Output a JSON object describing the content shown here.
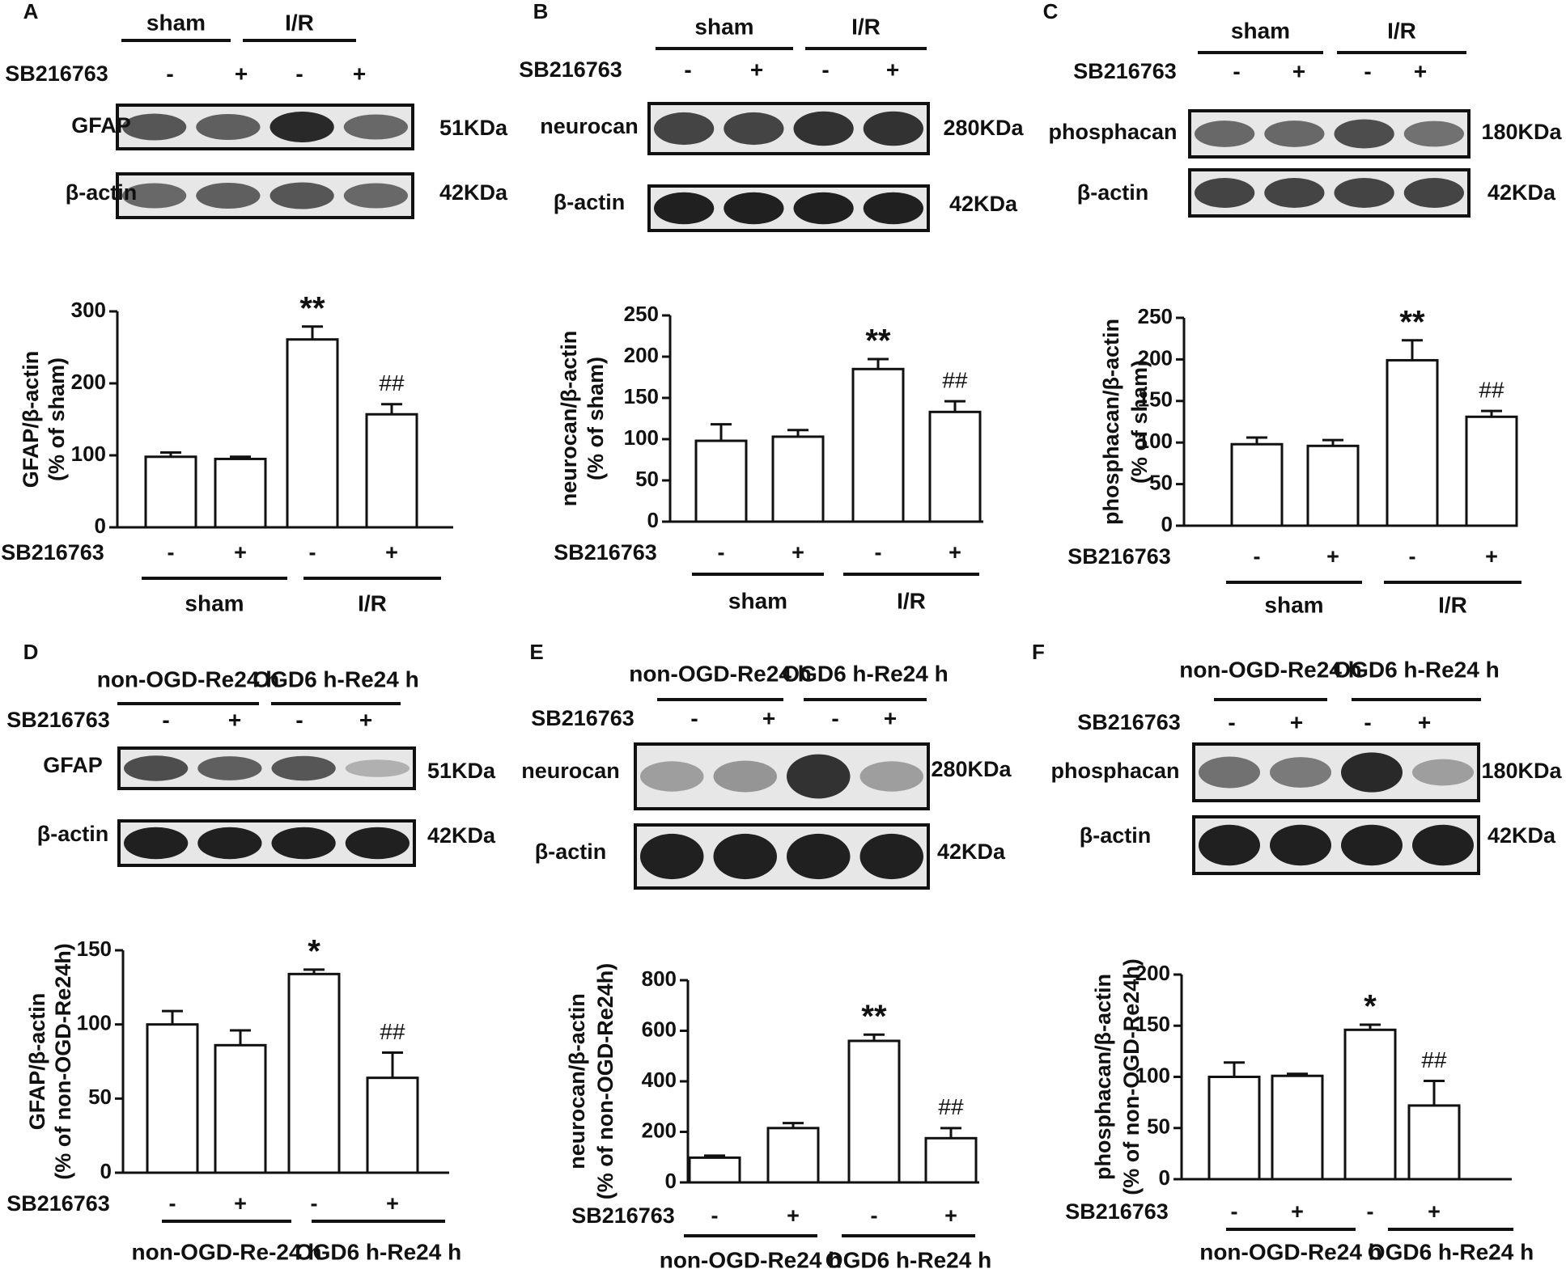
{
  "panels": [
    {
      "letter": "A",
      "blot": {
        "groups": [
          "sham",
          "I/R"
        ],
        "treatment_label": "SB216763",
        "signs": [
          "-",
          "+",
          "-",
          "+"
        ],
        "rows": [
          {
            "label": "GFAP",
            "size": "51KDa",
            "intensity": [
              0.7,
              0.65,
              0.95,
              0.6
            ]
          },
          {
            "label": "β-actin",
            "size": "42KDa",
            "intensity": [
              0.6,
              0.65,
              0.7,
              0.6
            ]
          }
        ]
      },
      "chart_data": {
        "type": "bar",
        "ylabel": "GFAP/β-actin",
        "ylabel2": "(% of sham)",
        "ylim": [
          0,
          300
        ],
        "yticks": [
          0,
          100,
          200,
          300
        ],
        "treatment_label": "SB216763",
        "categories": [
          "-",
          "+",
          "-",
          "+"
        ],
        "values": [
          98,
          95,
          261,
          157
        ],
        "errors": [
          6,
          3,
          18,
          14
        ],
        "annotations": [
          "",
          "",
          "**",
          "##"
        ],
        "groups": [
          "sham",
          "I/R"
        ]
      }
    },
    {
      "letter": "B",
      "blot": {
        "groups": [
          "sham",
          "I/R"
        ],
        "treatment_label": "SB216763",
        "signs": [
          "-",
          "+",
          "-",
          "+"
        ],
        "rows": [
          {
            "label": "neurocan",
            "size": "280KDa",
            "intensity": [
              0.8,
              0.8,
              0.9,
              0.9
            ]
          },
          {
            "label": "β-actin",
            "size": "42KDa",
            "intensity": [
              1,
              1,
              1,
              1
            ]
          }
        ]
      },
      "chart_data": {
        "type": "bar",
        "ylabel": "neurocan/β-actin",
        "ylabel2": "(% of sham)",
        "ylim": [
          0,
          250
        ],
        "yticks": [
          0,
          50,
          100,
          150,
          200,
          250
        ],
        "treatment_label": "SB216763",
        "categories": [
          "-",
          "+",
          "-",
          "+"
        ],
        "values": [
          98,
          103,
          185,
          133
        ],
        "errors": [
          20,
          8,
          12,
          13
        ],
        "annotations": [
          "",
          "",
          "**",
          "##"
        ],
        "groups": [
          "sham",
          "I/R"
        ]
      }
    },
    {
      "letter": "C",
      "blot": {
        "groups": [
          "sham",
          "I/R"
        ],
        "treatment_label": "SB216763",
        "signs": [
          "-",
          "+",
          "-",
          "+"
        ],
        "rows": [
          {
            "label": "phosphacan",
            "size": "180KDa",
            "intensity": [
              0.6,
              0.6,
              0.75,
              0.55
            ]
          },
          {
            "label": "β-actin",
            "size": "42KDa",
            "intensity": [
              0.8,
              0.8,
              0.8,
              0.8
            ]
          }
        ]
      },
      "chart_data": {
        "type": "bar",
        "ylabel": "phosphacan/β-actin",
        "ylabel2": "(% of sham)",
        "ylim": [
          0,
          250
        ],
        "yticks": [
          0,
          50,
          100,
          150,
          200,
          250
        ],
        "treatment_label": "SB216763",
        "categories": [
          "-",
          "+",
          "-",
          "+"
        ],
        "values": [
          98,
          96,
          199,
          131
        ],
        "errors": [
          8,
          7,
          24,
          7
        ],
        "annotations": [
          "",
          "",
          "**",
          "##"
        ],
        "groups": [
          "sham",
          "I/R"
        ]
      }
    },
    {
      "letter": "D",
      "blot": {
        "groups": [
          "non-OGD-Re24 h",
          "OGD6 h-Re24 h"
        ],
        "treatment_label": "SB216763",
        "signs": [
          "-",
          "+",
          "-",
          "+"
        ],
        "rows": [
          {
            "label": "GFAP",
            "size": "51KDa",
            "intensity": [
              0.75,
              0.65,
              0.7,
              0.2
            ]
          },
          {
            "label": "β-actin",
            "size": "42KDa",
            "intensity": [
              1,
              1,
              1,
              1
            ]
          }
        ]
      },
      "chart_data": {
        "type": "bar",
        "ylabel": "GFAP/β-actin",
        "ylabel2": "(% of non-OGD-Re24h)",
        "ylim": [
          0,
          150
        ],
        "yticks": [
          0,
          50,
          100,
          150
        ],
        "treatment_label": "SB216763",
        "categories": [
          "-",
          "+",
          "-",
          "+"
        ],
        "values": [
          100,
          86,
          134,
          64
        ],
        "errors": [
          9,
          10,
          3,
          17
        ],
        "annotations": [
          "",
          "",
          "*",
          "##"
        ],
        "groups": [
          "non-OGD-Re-24 h",
          "OGD6 h-Re24 h"
        ]
      }
    },
    {
      "letter": "E",
      "blot": {
        "groups": [
          "non-OGD-Re24 h",
          "OGD6 h-Re24 h"
        ],
        "treatment_label": "SB216763",
        "signs": [
          "-",
          "+",
          "-",
          "+"
        ],
        "rows": [
          {
            "label": "neurocan",
            "size": "280KDa",
            "intensity": [
              0.3,
              0.35,
              0.9,
              0.3
            ]
          },
          {
            "label": "β-actin",
            "size": "42KDa",
            "intensity": [
              1,
              1,
              1,
              1
            ]
          }
        ]
      },
      "chart_data": {
        "type": "bar",
        "ylabel": "neurocan/β-actin",
        "ylabel2": "(% of non-OGD-Re24h)",
        "ylim": [
          0,
          800
        ],
        "yticks": [
          0,
          200,
          400,
          600,
          800
        ],
        "treatment_label": "SB216763",
        "categories": [
          "-",
          "+",
          "-",
          "+"
        ],
        "values": [
          98,
          215,
          560,
          175
        ],
        "errors": [
          8,
          20,
          25,
          40
        ],
        "annotations": [
          "",
          "",
          "**",
          "##"
        ],
        "groups": [
          "non-OGD-Re24 h",
          "OGD6 h-Re24 h"
        ]
      }
    },
    {
      "letter": "F",
      "blot": {
        "groups": [
          "non-OGD-Re24 h",
          "OGD6 h-Re24 h"
        ],
        "treatment_label": "SB216763",
        "signs": [
          "-",
          "+",
          "-",
          "+"
        ],
        "rows": [
          {
            "label": "phosphacan",
            "size": "180KDa",
            "intensity": [
              0.55,
              0.5,
              0.95,
              0.3
            ]
          },
          {
            "label": "β-actin",
            "size": "42KDa",
            "intensity": [
              1,
              1,
              1,
              1
            ]
          }
        ]
      },
      "chart_data": {
        "type": "bar",
        "ylabel": "phosphacan/β-actin",
        "ylabel2": "(% of non-OGD-Re24h)",
        "ylim": [
          0,
          200
        ],
        "yticks": [
          0,
          50,
          100,
          150,
          200
        ],
        "treatment_label": "SB216763",
        "categories": [
          "-",
          "+",
          "-",
          "+"
        ],
        "values": [
          100,
          101,
          146,
          72
        ],
        "errors": [
          14,
          2,
          5,
          24
        ],
        "annotations": [
          "",
          "",
          "*",
          "##"
        ],
        "groups": [
          "non-OGD-Re24 h",
          "OGD6 h-Re24 h"
        ]
      }
    }
  ]
}
